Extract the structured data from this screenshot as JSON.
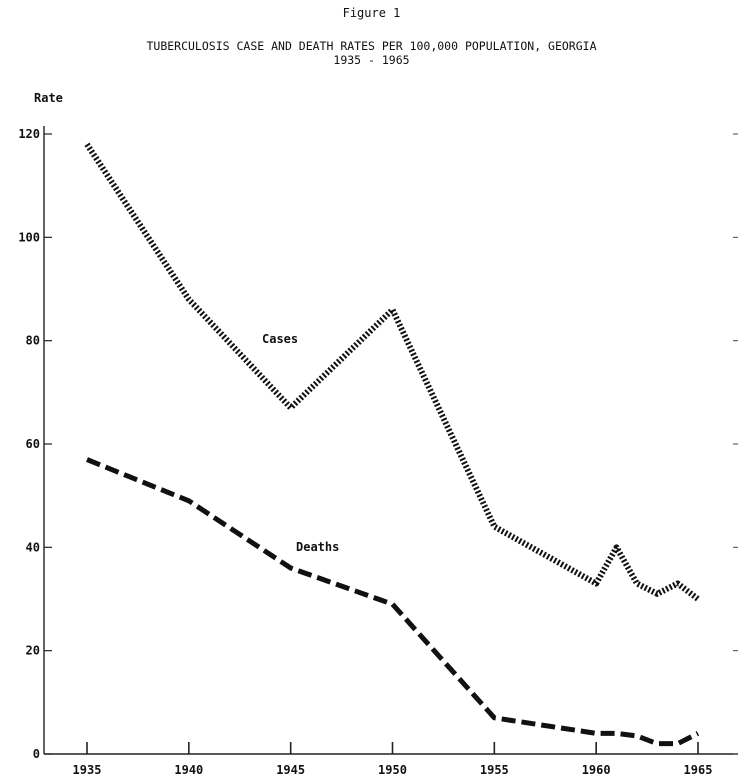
{
  "figure_label": "Figure 1",
  "chart_data": {
    "type": "line",
    "title": "TUBERCULOSIS CASE AND DEATH RATES PER 100,000 POPULATION, GEORGIA",
    "subtitle": "1935 - 1965",
    "ylabel": "Rate",
    "xlabel": "",
    "xlim": [
      1935,
      1965
    ],
    "ylim": [
      0,
      120
    ],
    "x_ticks": [
      "1935",
      "1940",
      "1945",
      "1950",
      "1955",
      "1960",
      "1965"
    ],
    "y_ticks": [
      "0",
      "20",
      "40",
      "60",
      "80",
      "100",
      "120"
    ],
    "grid": false,
    "series": [
      {
        "name": "Cases",
        "line_style": "dotted",
        "color": "#111111",
        "x": [
          1935,
          1940,
          1945,
          1950,
          1955,
          1960,
          1961,
          1962,
          1963,
          1964,
          1965
        ],
        "y": [
          118,
          88,
          67,
          86,
          44,
          33,
          40,
          33,
          31,
          33,
          30
        ]
      },
      {
        "name": "Deaths",
        "line_style": "dashed",
        "color": "#111111",
        "x": [
          1935,
          1940,
          1945,
          1950,
          1955,
          1960,
          1961,
          1962,
          1963,
          1964,
          1965
        ],
        "y": [
          57,
          49,
          36,
          29,
          7,
          4,
          4,
          3.5,
          2,
          2,
          4
        ]
      }
    ]
  }
}
